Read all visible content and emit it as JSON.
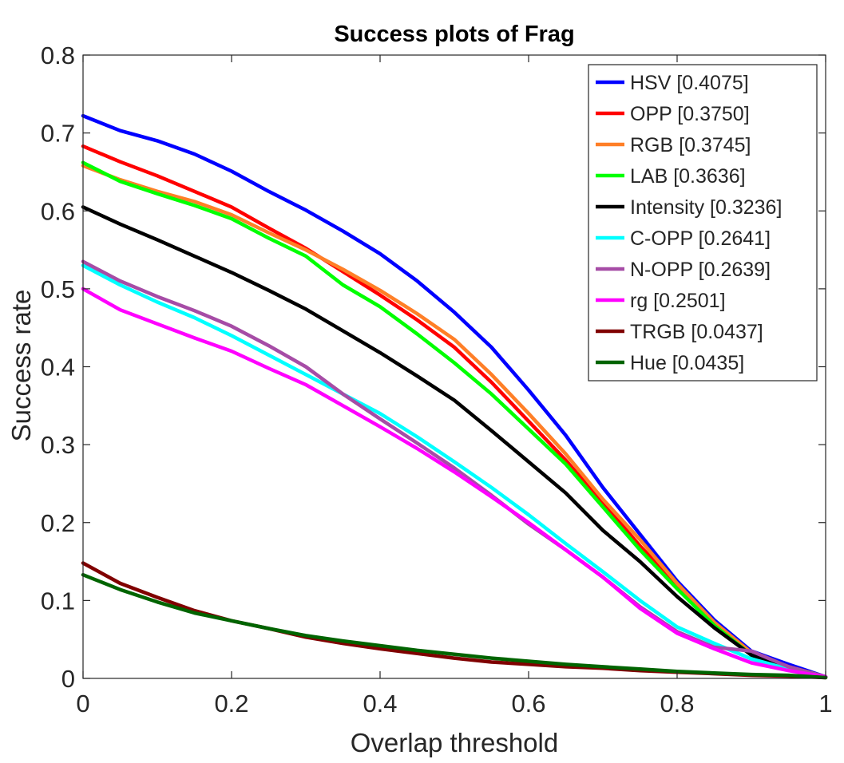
{
  "chart_data": {
    "type": "line",
    "title": "Success plots of Frag",
    "xlabel": "Overlap threshold",
    "ylabel": "Success rate",
    "xlim": [
      0,
      1
    ],
    "ylim": [
      0,
      0.8
    ],
    "x_ticks": [
      "0",
      "0.2",
      "0.4",
      "0.6",
      "0.8",
      "1"
    ],
    "y_ticks": [
      "0",
      "0.1",
      "0.2",
      "0.3",
      "0.4",
      "0.5",
      "0.6",
      "0.7",
      "0.8"
    ],
    "grid": false,
    "legend_position": "top-right",
    "x": [
      0,
      0.05,
      0.1,
      0.15,
      0.2,
      0.25,
      0.3,
      0.35,
      0.4,
      0.45,
      0.5,
      0.55,
      0.6,
      0.65,
      0.7,
      0.75,
      0.8,
      0.85,
      0.9,
      0.95,
      1.0
    ],
    "series": [
      {
        "name": "HSV [0.4075]",
        "color": "#0000ff",
        "values": [
          0.722,
          0.703,
          0.69,
          0.673,
          0.651,
          0.625,
          0.601,
          0.574,
          0.545,
          0.51,
          0.47,
          0.425,
          0.37,
          0.312,
          0.245,
          0.185,
          0.125,
          0.075,
          0.035,
          0.018,
          0.002
        ]
      },
      {
        "name": "OPP [0.3750]",
        "color": "#ff0000",
        "values": [
          0.683,
          0.663,
          0.645,
          0.625,
          0.605,
          0.578,
          0.552,
          0.522,
          0.492,
          0.46,
          0.425,
          0.38,
          0.33,
          0.28,
          0.225,
          0.17,
          0.12,
          0.07,
          0.032,
          0.015,
          0.002
        ]
      },
      {
        "name": "RGB [0.3745]",
        "color": "#ff7f27",
        "values": [
          0.658,
          0.64,
          0.625,
          0.612,
          0.595,
          0.572,
          0.55,
          0.525,
          0.498,
          0.468,
          0.435,
          0.39,
          0.34,
          0.288,
          0.23,
          0.178,
          0.122,
          0.072,
          0.033,
          0.015,
          0.002
        ]
      },
      {
        "name": "LAB [0.3636]",
        "color": "#00ff00",
        "values": [
          0.662,
          0.638,
          0.622,
          0.607,
          0.59,
          0.565,
          0.542,
          0.505,
          0.477,
          0.442,
          0.405,
          0.365,
          0.32,
          0.275,
          0.22,
          0.165,
          0.115,
          0.068,
          0.03,
          0.014,
          0.002
        ]
      },
      {
        "name": "Intensity [0.3236]",
        "color": "#000000",
        "values": [
          0.605,
          0.583,
          0.563,
          0.542,
          0.521,
          0.498,
          0.474,
          0.446,
          0.418,
          0.388,
          0.357,
          0.318,
          0.278,
          0.238,
          0.19,
          0.15,
          0.105,
          0.065,
          0.03,
          0.014,
          0.002
        ]
      },
      {
        "name": "C-OPP [0.2641]",
        "color": "#00ffff",
        "values": [
          0.53,
          0.505,
          0.483,
          0.463,
          0.44,
          0.415,
          0.39,
          0.365,
          0.34,
          0.31,
          0.278,
          0.245,
          0.21,
          0.173,
          0.137,
          0.1,
          0.066,
          0.045,
          0.025,
          0.012,
          0.002
        ]
      },
      {
        "name": "N-OPP [0.2639]",
        "color": "#a64ca6",
        "values": [
          0.535,
          0.51,
          0.49,
          0.472,
          0.452,
          0.427,
          0.4,
          0.365,
          0.333,
          0.302,
          0.27,
          0.235,
          0.198,
          0.165,
          0.13,
          0.092,
          0.06,
          0.04,
          0.035,
          0.015,
          0.002
        ]
      },
      {
        "name": "rg [0.2501]",
        "color": "#ff00ff",
        "values": [
          0.5,
          0.473,
          0.455,
          0.437,
          0.42,
          0.398,
          0.377,
          0.35,
          0.323,
          0.295,
          0.265,
          0.233,
          0.2,
          0.165,
          0.13,
          0.09,
          0.058,
          0.038,
          0.02,
          0.01,
          0.002
        ]
      },
      {
        "name": "TRGB [0.0437]",
        "color": "#800000",
        "values": [
          0.148,
          0.122,
          0.104,
          0.087,
          0.074,
          0.064,
          0.053,
          0.045,
          0.038,
          0.032,
          0.026,
          0.021,
          0.018,
          0.015,
          0.013,
          0.01,
          0.008,
          0.006,
          0.004,
          0.003,
          0.001
        ]
      },
      {
        "name": "Hue [0.0435]",
        "color": "#006400",
        "values": [
          0.133,
          0.114,
          0.098,
          0.084,
          0.074,
          0.064,
          0.055,
          0.048,
          0.042,
          0.036,
          0.031,
          0.026,
          0.022,
          0.018,
          0.015,
          0.012,
          0.009,
          0.007,
          0.005,
          0.004,
          0.001
        ]
      }
    ]
  }
}
